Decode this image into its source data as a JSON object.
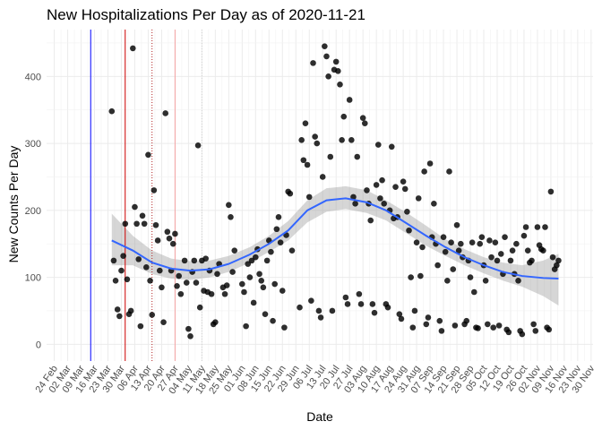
{
  "chart_data": {
    "type": "scatter",
    "title": "New Hospitalizations Per Day as of 2020-11-21",
    "xlabel": "Date",
    "ylabel": "New Counts Per Day",
    "xlim": [
      "2020-02-20",
      "2020-12-01"
    ],
    "ylim": [
      -25,
      470
    ],
    "grid": true,
    "x_ticks": [
      "2020-02-24",
      "2020-03-02",
      "2020-03-09",
      "2020-03-16",
      "2020-03-23",
      "2020-03-30",
      "2020-04-06",
      "2020-04-13",
      "2020-04-20",
      "2020-04-27",
      "2020-05-04",
      "2020-05-11",
      "2020-05-18",
      "2020-05-25",
      "2020-06-01",
      "2020-06-08",
      "2020-06-15",
      "2020-06-22",
      "2020-06-29",
      "2020-07-06",
      "2020-07-13",
      "2020-07-20",
      "2020-07-27",
      "2020-08-03",
      "2020-08-10",
      "2020-08-17",
      "2020-08-24",
      "2020-08-31",
      "2020-09-07",
      "2020-09-14",
      "2020-09-21",
      "2020-09-28",
      "2020-10-05",
      "2020-10-12",
      "2020-10-19",
      "2020-10-26",
      "2020-11-02",
      "2020-11-09",
      "2020-11-16",
      "2020-11-23",
      "2020-11-30"
    ],
    "x_tick_labels": [
      "24 Feb",
      "02 Mar",
      "09 Mar",
      "16 Mar",
      "23 Mar",
      "30 Mar",
      "06 Apr",
      "13 Apr",
      "20 Apr",
      "27 Apr",
      "04 May",
      "11 May",
      "18 May",
      "25 May",
      "01 Jun",
      "08 Jun",
      "15 Jun",
      "22 Jun",
      "29 Jun",
      "06 Jul",
      "13 Jul",
      "20 Jul",
      "27 Jul",
      "03 Aug",
      "10 Aug",
      "17 Aug",
      "24 Aug",
      "31 Aug",
      "07 Sep",
      "14 Sep",
      "21 Sep",
      "28 Sep",
      "05 Oct",
      "12 Oct",
      "19 Oct",
      "26 Oct",
      "02 Nov",
      "09 Nov",
      "16 Nov",
      "23 Nov",
      "30 Nov"
    ],
    "y_ticks": [
      0,
      100,
      200,
      300,
      400
    ],
    "vlines": [
      {
        "x": "2020-03-14",
        "color": "#0000ff",
        "style": "solid"
      },
      {
        "x": "2020-04-01",
        "color": "#cc0000",
        "style": "solid"
      },
      {
        "x": "2020-04-15",
        "color": "#b22222",
        "style": "dotted"
      },
      {
        "x": "2020-04-27",
        "color": "#f4a3a3",
        "style": "solid"
      },
      {
        "x": "2020-05-11",
        "color": "#d3d3d3",
        "style": "dotted"
      }
    ],
    "points": [
      {
        "x": "2020-03-25",
        "y": 348
      },
      {
        "x": "2020-03-26",
        "y": 125
      },
      {
        "x": "2020-03-27",
        "y": 95
      },
      {
        "x": "2020-03-28",
        "y": 52
      },
      {
        "x": "2020-03-29",
        "y": 42
      },
      {
        "x": "2020-03-30",
        "y": 110
      },
      {
        "x": "2020-03-31",
        "y": 132
      },
      {
        "x": "2020-04-01",
        "y": 180
      },
      {
        "x": "2020-04-02",
        "y": 97
      },
      {
        "x": "2020-04-03",
        "y": 45
      },
      {
        "x": "2020-04-04",
        "y": 50
      },
      {
        "x": "2020-04-05",
        "y": 442
      },
      {
        "x": "2020-04-06",
        "y": 205
      },
      {
        "x": "2020-04-07",
        "y": 180
      },
      {
        "x": "2020-04-08",
        "y": 127
      },
      {
        "x": "2020-04-09",
        "y": 27
      },
      {
        "x": "2020-04-10",
        "y": 192
      },
      {
        "x": "2020-04-11",
        "y": 180
      },
      {
        "x": "2020-04-12",
        "y": 115
      },
      {
        "x": "2020-04-13",
        "y": 283
      },
      {
        "x": "2020-04-14",
        "y": 95
      },
      {
        "x": "2020-04-15",
        "y": 44
      },
      {
        "x": "2020-04-16",
        "y": 230
      },
      {
        "x": "2020-04-17",
        "y": 178
      },
      {
        "x": "2020-04-18",
        "y": 155
      },
      {
        "x": "2020-04-19",
        "y": 110
      },
      {
        "x": "2020-04-20",
        "y": 85
      },
      {
        "x": "2020-04-21",
        "y": 33
      },
      {
        "x": "2020-04-22",
        "y": 345
      },
      {
        "x": "2020-04-23",
        "y": 168
      },
      {
        "x": "2020-04-24",
        "y": 158
      },
      {
        "x": "2020-04-25",
        "y": 110
      },
      {
        "x": "2020-04-26",
        "y": 150
      },
      {
        "x": "2020-04-27",
        "y": 165
      },
      {
        "x": "2020-04-28",
        "y": 87
      },
      {
        "x": "2020-04-29",
        "y": 102
      },
      {
        "x": "2020-04-30",
        "y": 75
      },
      {
        "x": "2020-05-02",
        "y": 125
      },
      {
        "x": "2020-05-03",
        "y": 92
      },
      {
        "x": "2020-05-04",
        "y": 23
      },
      {
        "x": "2020-05-05",
        "y": 12
      },
      {
        "x": "2020-05-06",
        "y": 108
      },
      {
        "x": "2020-05-07",
        "y": 125
      },
      {
        "x": "2020-05-08",
        "y": 92
      },
      {
        "x": "2020-05-09",
        "y": 297
      },
      {
        "x": "2020-05-10",
        "y": 55
      },
      {
        "x": "2020-05-11",
        "y": 125
      },
      {
        "x": "2020-05-12",
        "y": 80
      },
      {
        "x": "2020-05-13",
        "y": 128
      },
      {
        "x": "2020-05-14",
        "y": 78
      },
      {
        "x": "2020-05-15",
        "y": 110
      },
      {
        "x": "2020-05-16",
        "y": 75
      },
      {
        "x": "2020-05-17",
        "y": 30
      },
      {
        "x": "2020-05-18",
        "y": 33
      },
      {
        "x": "2020-05-19",
        "y": 105
      },
      {
        "x": "2020-05-20",
        "y": 120
      },
      {
        "x": "2020-05-22",
        "y": 85
      },
      {
        "x": "2020-05-23",
        "y": 75
      },
      {
        "x": "2020-05-24",
        "y": 88
      },
      {
        "x": "2020-05-25",
        "y": 208
      },
      {
        "x": "2020-05-26",
        "y": 190
      },
      {
        "x": "2020-05-27",
        "y": 108
      },
      {
        "x": "2020-05-28",
        "y": 140
      },
      {
        "x": "2020-06-01",
        "y": 90
      },
      {
        "x": "2020-06-02",
        "y": 78
      },
      {
        "x": "2020-06-03",
        "y": 27
      },
      {
        "x": "2020-06-04",
        "y": 120
      },
      {
        "x": "2020-06-05",
        "y": 100
      },
      {
        "x": "2020-06-06",
        "y": 125
      },
      {
        "x": "2020-06-07",
        "y": 62
      },
      {
        "x": "2020-06-08",
        "y": 130
      },
      {
        "x": "2020-06-09",
        "y": 142
      },
      {
        "x": "2020-06-10",
        "y": 105
      },
      {
        "x": "2020-06-11",
        "y": 95
      },
      {
        "x": "2020-06-12",
        "y": 85
      },
      {
        "x": "2020-06-13",
        "y": 45
      },
      {
        "x": "2020-06-14",
        "y": 125
      },
      {
        "x": "2020-06-15",
        "y": 155
      },
      {
        "x": "2020-06-16",
        "y": 138
      },
      {
        "x": "2020-06-17",
        "y": 35
      },
      {
        "x": "2020-06-18",
        "y": 90
      },
      {
        "x": "2020-06-19",
        "y": 172
      },
      {
        "x": "2020-06-20",
        "y": 190
      },
      {
        "x": "2020-06-21",
        "y": 152
      },
      {
        "x": "2020-06-22",
        "y": 80
      },
      {
        "x": "2020-06-23",
        "y": 25
      },
      {
        "x": "2020-06-24",
        "y": 163
      },
      {
        "x": "2020-06-25",
        "y": 228
      },
      {
        "x": "2020-06-26",
        "y": 225
      },
      {
        "x": "2020-06-27",
        "y": 140
      },
      {
        "x": "2020-07-01",
        "y": 55
      },
      {
        "x": "2020-07-02",
        "y": 305
      },
      {
        "x": "2020-07-03",
        "y": 275
      },
      {
        "x": "2020-07-04",
        "y": 330
      },
      {
        "x": "2020-07-05",
        "y": 268
      },
      {
        "x": "2020-07-06",
        "y": 220
      },
      {
        "x": "2020-07-07",
        "y": 65
      },
      {
        "x": "2020-07-08",
        "y": 420
      },
      {
        "x": "2020-07-09",
        "y": 310
      },
      {
        "x": "2020-07-10",
        "y": 300
      },
      {
        "x": "2020-07-11",
        "y": 50
      },
      {
        "x": "2020-07-12",
        "y": 40
      },
      {
        "x": "2020-07-13",
        "y": 250
      },
      {
        "x": "2020-07-14",
        "y": 445
      },
      {
        "x": "2020-07-15",
        "y": 430
      },
      {
        "x": "2020-07-16",
        "y": 400
      },
      {
        "x": "2020-07-17",
        "y": 280
      },
      {
        "x": "2020-07-18",
        "y": 50
      },
      {
        "x": "2020-07-19",
        "y": 410
      },
      {
        "x": "2020-07-20",
        "y": 422
      },
      {
        "x": "2020-07-21",
        "y": 408
      },
      {
        "x": "2020-07-22",
        "y": 388
      },
      {
        "x": "2020-07-23",
        "y": 305
      },
      {
        "x": "2020-07-24",
        "y": 340
      },
      {
        "x": "2020-07-25",
        "y": 70
      },
      {
        "x": "2020-07-26",
        "y": 60
      },
      {
        "x": "2020-07-27",
        "y": 365
      },
      {
        "x": "2020-07-28",
        "y": 305
      },
      {
        "x": "2020-07-29",
        "y": 220
      },
      {
        "x": "2020-07-30",
        "y": 210
      },
      {
        "x": "2020-07-31",
        "y": 280
      },
      {
        "x": "2020-08-01",
        "y": 75
      },
      {
        "x": "2020-08-02",
        "y": 60
      },
      {
        "x": "2020-08-03",
        "y": 338
      },
      {
        "x": "2020-08-04",
        "y": 330
      },
      {
        "x": "2020-08-05",
        "y": 230
      },
      {
        "x": "2020-08-06",
        "y": 210
      },
      {
        "x": "2020-08-07",
        "y": 185
      },
      {
        "x": "2020-08-08",
        "y": 60
      },
      {
        "x": "2020-08-09",
        "y": 47
      },
      {
        "x": "2020-08-10",
        "y": 238
      },
      {
        "x": "2020-08-11",
        "y": 298
      },
      {
        "x": "2020-08-12",
        "y": 218
      },
      {
        "x": "2020-08-13",
        "y": 245
      },
      {
        "x": "2020-08-14",
        "y": 210
      },
      {
        "x": "2020-08-15",
        "y": 60
      },
      {
        "x": "2020-08-16",
        "y": 55
      },
      {
        "x": "2020-08-17",
        "y": 200
      },
      {
        "x": "2020-08-18",
        "y": 295
      },
      {
        "x": "2020-08-19",
        "y": 188
      },
      {
        "x": "2020-08-20",
        "y": 235
      },
      {
        "x": "2020-08-21",
        "y": 190
      },
      {
        "x": "2020-08-22",
        "y": 45
      },
      {
        "x": "2020-08-23",
        "y": 38
      },
      {
        "x": "2020-08-24",
        "y": 243
      },
      {
        "x": "2020-08-25",
        "y": 232
      },
      {
        "x": "2020-08-26",
        "y": 198
      },
      {
        "x": "2020-08-27",
        "y": 170
      },
      {
        "x": "2020-08-28",
        "y": 100
      },
      {
        "x": "2020-08-29",
        "y": 25
      },
      {
        "x": "2020-08-30",
        "y": 50
      },
      {
        "x": "2020-08-31",
        "y": 152
      },
      {
        "x": "2020-09-01",
        "y": 218
      },
      {
        "x": "2020-09-02",
        "y": 102
      },
      {
        "x": "2020-09-03",
        "y": 145
      },
      {
        "x": "2020-09-04",
        "y": 258
      },
      {
        "x": "2020-09-05",
        "y": 30
      },
      {
        "x": "2020-09-06",
        "y": 40
      },
      {
        "x": "2020-09-07",
        "y": 270
      },
      {
        "x": "2020-09-08",
        "y": 160
      },
      {
        "x": "2020-09-09",
        "y": 210
      },
      {
        "x": "2020-09-10",
        "y": 150
      },
      {
        "x": "2020-09-11",
        "y": 118
      },
      {
        "x": "2020-09-12",
        "y": 35
      },
      {
        "x": "2020-09-13",
        "y": 20
      },
      {
        "x": "2020-09-14",
        "y": 160
      },
      {
        "x": "2020-09-15",
        "y": 138
      },
      {
        "x": "2020-09-16",
        "y": 95
      },
      {
        "x": "2020-09-17",
        "y": 258
      },
      {
        "x": "2020-09-18",
        "y": 152
      },
      {
        "x": "2020-09-19",
        "y": 112
      },
      {
        "x": "2020-09-20",
        "y": 28
      },
      {
        "x": "2020-09-21",
        "y": 178
      },
      {
        "x": "2020-09-22",
        "y": 140
      },
      {
        "x": "2020-09-23",
        "y": 150
      },
      {
        "x": "2020-09-24",
        "y": 130
      },
      {
        "x": "2020-09-25",
        "y": 30
      },
      {
        "x": "2020-09-26",
        "y": 35
      },
      {
        "x": "2020-09-27",
        "y": 125
      },
      {
        "x": "2020-09-28",
        "y": 100
      },
      {
        "x": "2020-09-29",
        "y": 152
      },
      {
        "x": "2020-09-30",
        "y": 78
      },
      {
        "x": "2020-10-01",
        "y": 25
      },
      {
        "x": "2020-10-02",
        "y": 24
      },
      {
        "x": "2020-10-03",
        "y": 150
      },
      {
        "x": "2020-10-04",
        "y": 160
      },
      {
        "x": "2020-10-05",
        "y": 118
      },
      {
        "x": "2020-10-06",
        "y": 95
      },
      {
        "x": "2020-10-07",
        "y": 30
      },
      {
        "x": "2020-10-08",
        "y": 155
      },
      {
        "x": "2020-10-09",
        "y": 130
      },
      {
        "x": "2020-10-10",
        "y": 25
      },
      {
        "x": "2020-10-11",
        "y": 152
      },
      {
        "x": "2020-10-12",
        "y": 125
      },
      {
        "x": "2020-10-13",
        "y": 28
      },
      {
        "x": "2020-10-14",
        "y": 135
      },
      {
        "x": "2020-10-15",
        "y": 105
      },
      {
        "x": "2020-10-16",
        "y": 160
      },
      {
        "x": "2020-10-17",
        "y": 22
      },
      {
        "x": "2020-10-18",
        "y": 18
      },
      {
        "x": "2020-10-19",
        "y": 125
      },
      {
        "x": "2020-10-20",
        "y": 140
      },
      {
        "x": "2020-10-21",
        "y": 105
      },
      {
        "x": "2020-10-22",
        "y": 150
      },
      {
        "x": "2020-10-23",
        "y": 95
      },
      {
        "x": "2020-10-24",
        "y": 20
      },
      {
        "x": "2020-10-25",
        "y": 15
      },
      {
        "x": "2020-10-26",
        "y": 162
      },
      {
        "x": "2020-10-27",
        "y": 175
      },
      {
        "x": "2020-10-28",
        "y": 140
      },
      {
        "x": "2020-10-29",
        "y": 122
      },
      {
        "x": "2020-10-30",
        "y": 125
      },
      {
        "x": "2020-10-31",
        "y": 30
      },
      {
        "x": "2020-11-01",
        "y": 20
      },
      {
        "x": "2020-11-02",
        "y": 175
      },
      {
        "x": "2020-11-03",
        "y": 148
      },
      {
        "x": "2020-11-04",
        "y": 142
      },
      {
        "x": "2020-11-05",
        "y": 140
      },
      {
        "x": "2020-11-06",
        "y": 175
      },
      {
        "x": "2020-11-07",
        "y": 25
      },
      {
        "x": "2020-11-08",
        "y": 22
      },
      {
        "x": "2020-11-09",
        "y": 228
      },
      {
        "x": "2020-11-10",
        "y": 130
      },
      {
        "x": "2020-11-11",
        "y": 112
      },
      {
        "x": "2020-11-12",
        "y": 118
      },
      {
        "x": "2020-11-13",
        "y": 125
      }
    ],
    "smooth": {
      "color": "#3366ff",
      "x": [
        "2020-03-25",
        "2020-04-05",
        "2020-04-15",
        "2020-04-25",
        "2020-05-05",
        "2020-05-15",
        "2020-05-25",
        "2020-06-05",
        "2020-06-15",
        "2020-06-25",
        "2020-07-05",
        "2020-07-15",
        "2020-07-25",
        "2020-08-05",
        "2020-08-15",
        "2020-08-25",
        "2020-09-05",
        "2020-09-15",
        "2020-09-25",
        "2020-10-05",
        "2020-10-15",
        "2020-10-25",
        "2020-11-05",
        "2020-11-13"
      ],
      "y": [
        155,
        140,
        122,
        113,
        110,
        112,
        120,
        134,
        150,
        170,
        200,
        215,
        218,
        212,
        200,
        182,
        162,
        145,
        130,
        118,
        108,
        102,
        99,
        98
      ],
      "upper": [
        195,
        162,
        140,
        128,
        124,
        125,
        132,
        145,
        162,
        184,
        215,
        233,
        236,
        230,
        215,
        198,
        177,
        157,
        142,
        130,
        122,
        118,
        125,
        135
      ],
      "lower": [
        118,
        118,
        105,
        98,
        96,
        100,
        108,
        122,
        138,
        155,
        182,
        198,
        202,
        196,
        185,
        167,
        147,
        132,
        118,
        106,
        95,
        86,
        72,
        58
      ]
    }
  }
}
